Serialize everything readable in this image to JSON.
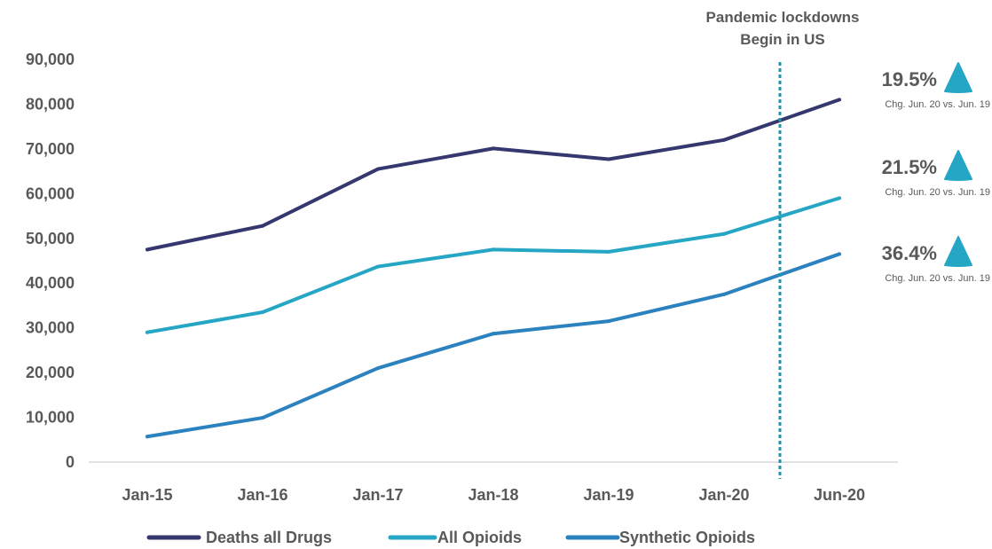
{
  "chart_data": {
    "type": "line",
    "categories": [
      "Jan-15",
      "Jan-16",
      "Jan-17",
      "Jan-18",
      "Jan-19",
      "Jan-20",
      "Jun-20"
    ],
    "series": [
      {
        "name": "Deaths all Drugs",
        "color": "#35376F",
        "values": [
          47500,
          52800,
          65500,
          70100,
          67700,
          72000,
          81000
        ]
      },
      {
        "name": "All Opioids",
        "color": "#25A6C5",
        "values": [
          29000,
          33500,
          43700,
          47500,
          47000,
          51000,
          59000
        ]
      },
      {
        "name": "Synthetic Opioids",
        "color": "#2B82BF",
        "values": [
          5700,
          9900,
          21000,
          28700,
          31500,
          37500,
          46500
        ]
      }
    ],
    "ylim": [
      0,
      90000
    ],
    "yticks": [
      0,
      10000,
      20000,
      30000,
      40000,
      50000,
      60000,
      70000,
      80000,
      90000
    ],
    "ytick_labels": [
      "0",
      "10,000",
      "20,000",
      "30,000",
      "40,000",
      "50,000",
      "60,000",
      "70,000",
      "80,000",
      "90,000"
    ],
    "grid": false,
    "legend_position": "bottom",
    "vline": {
      "label_line1": "Pandemic lockdowns",
      "label_line2": "Begin in US",
      "color": "#1E95A8"
    },
    "annotations": [
      {
        "pct": "19.5%",
        "sub": "Chg. Jun. 20 vs. Jun. 19",
        "color": "#25A6C5"
      },
      {
        "pct": "21.5%",
        "sub": "Chg. Jun. 20 vs. Jun. 19",
        "color": "#25A6C5"
      },
      {
        "pct": "36.4%",
        "sub": "Chg. Jun. 20 vs. Jun. 19",
        "color": "#25A6C5"
      }
    ]
  }
}
